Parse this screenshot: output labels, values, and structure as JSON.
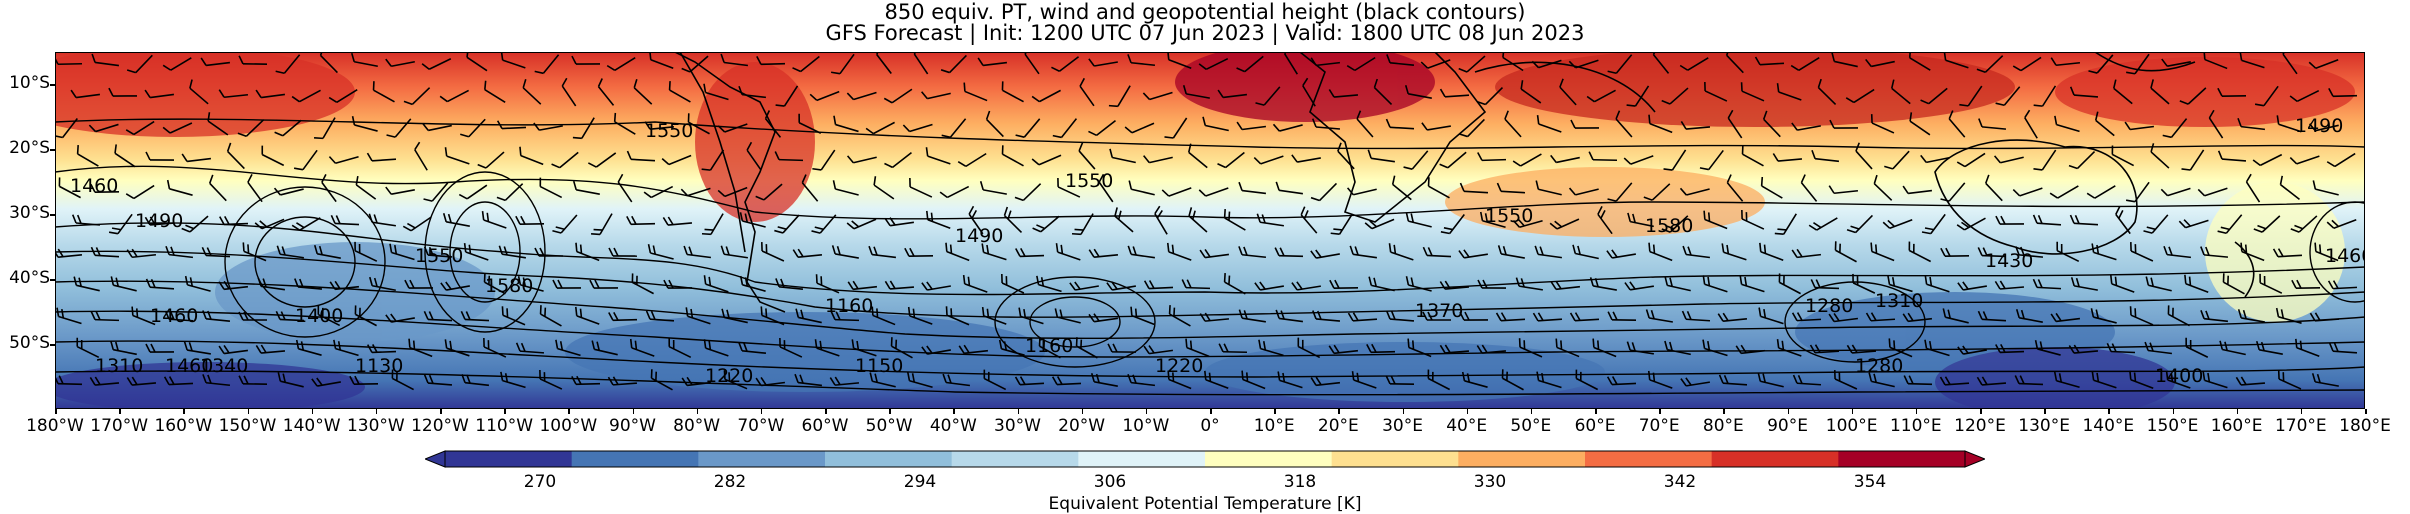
{
  "title": {
    "line1": "850 equiv. PT, wind and geopotential height (black contours)",
    "line2": "GFS Forecast | Init: 1200 UTC 07 Jun 2023 | Valid: 1800 UTC 08 Jun 2023"
  },
  "map": {
    "lat_labels": [
      "10°S",
      "20°S",
      "30°S",
      "40°S",
      "50°S"
    ],
    "lon_labels": [
      "180°W",
      "170°W",
      "160°W",
      "150°W",
      "140°W",
      "130°W",
      "120°W",
      "110°W",
      "100°W",
      "90°W",
      "80°W",
      "70°W",
      "60°W",
      "50°W",
      "40°W",
      "30°W",
      "20°W",
      "10°W",
      "0°",
      "10°E",
      "20°E",
      "30°E",
      "40°E",
      "50°E",
      "60°E",
      "70°E",
      "80°E",
      "90°E",
      "100°E",
      "110°E",
      "120°E",
      "130°E",
      "140°E",
      "150°E",
      "160°E",
      "170°E",
      "180°E"
    ],
    "lat_range": [
      "5°S",
      "60°S"
    ],
    "lon_range": [
      "180°W",
      "180°E"
    ],
    "contour_labels": [
      "1550",
      "1460",
      "1490",
      "1400",
      "1460",
      "1340",
      "1310",
      "1550",
      "1580",
      "1220",
      "1460",
      "1150",
      "1550",
      "1490",
      "1160",
      "1370",
      "1550",
      "1580",
      "1430",
      "1280",
      "1310",
      "1280",
      "1490",
      "1460",
      "1400",
      "1130",
      "1220",
      "1160"
    ]
  },
  "colorbar": {
    "label": "Equivalent Potential Temperature [K]",
    "tick_labels": [
      "270",
      "282",
      "294",
      "306",
      "318",
      "330",
      "342",
      "354"
    ],
    "min": 264,
    "max": 360,
    "colors": [
      "#313695",
      "#4575b4",
      "#6a98c8",
      "#91bfdb",
      "#b7d9ea",
      "#e0f3f8",
      "#ffffbf",
      "#fee090",
      "#fdae61",
      "#f46d43",
      "#d73027",
      "#a50026"
    ]
  }
}
